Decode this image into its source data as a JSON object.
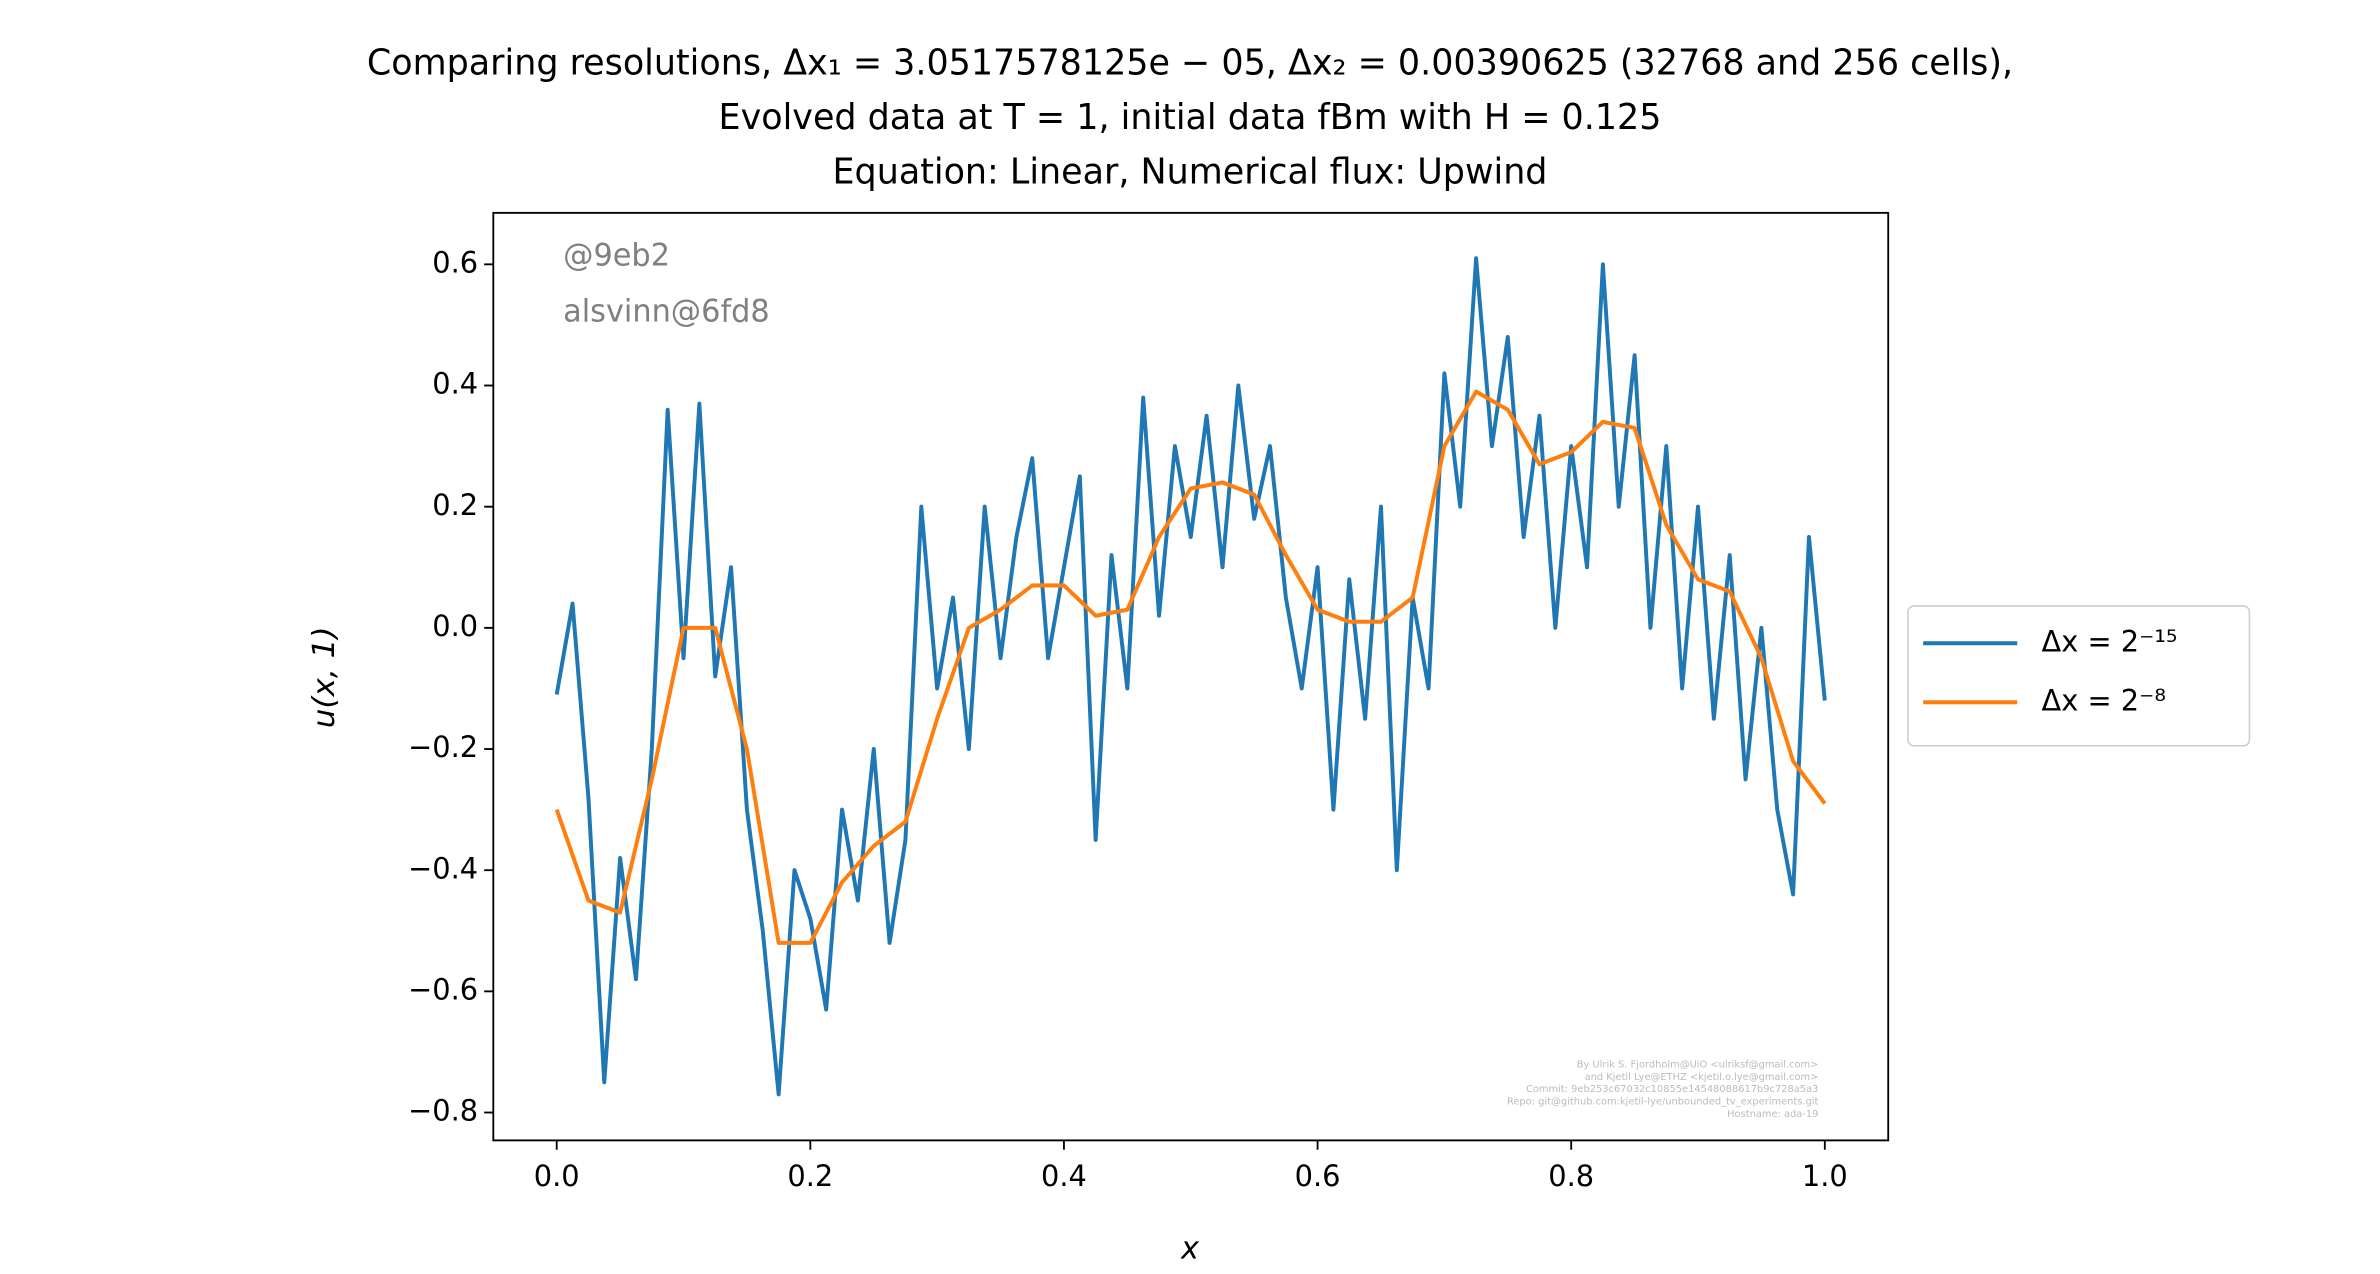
{
  "chart_data": {
    "type": "line",
    "title": [
      "Comparing resolutions, Δx₁ = 3.0517578125e − 05, Δx₂ = 0.00390625 (32768 and 256 cells),",
      "Evolved data at T = 1, initial data fBm with H = 0.125",
      "Equation: Linear, Numerical flux: Upwind"
    ],
    "x_label": "x",
    "y_label": "u(x, 1)",
    "watermark": [
      "@9eb2",
      "alsvinn@6fd8"
    ],
    "credits": [
      "By Ulrik S. Fjordholm@UiO <ulriksf@gmail.com>",
      "and Kjetil Lye@ETHZ <kjetil.o.lye@gmail.com>",
      "Commit: 9eb253c67032c10855e14548088617b9c728a5a3",
      "Repo: git@github.com:kjetil-lye/unbounded_tv_experiments.git",
      "Hostname: ada-19"
    ],
    "xlim": [
      -0.05,
      1.05
    ],
    "ylim": [
      -0.846,
      0.685
    ],
    "xticks": [
      {
        "value": 0,
        "label": "0.0"
      },
      {
        "value": 0.2,
        "label": "0.2"
      },
      {
        "value": 0.4,
        "label": "0.4"
      },
      {
        "value": 0.6,
        "label": "0.6"
      },
      {
        "value": 0.8,
        "label": "0.8"
      },
      {
        "value": 1,
        "label": "1.0"
      }
    ],
    "yticks": [
      {
        "value": -0.8,
        "label": "−0.8"
      },
      {
        "value": -0.6,
        "label": "−0.6"
      },
      {
        "value": -0.4,
        "label": "−0.4"
      },
      {
        "value": -0.2,
        "label": "−0.2"
      },
      {
        "value": 0,
        "label": "0.0"
      },
      {
        "value": 0.2,
        "label": "0.2"
      },
      {
        "value": 0.4,
        "label": "0.4"
      },
      {
        "value": 0.6,
        "label": "0.6"
      }
    ],
    "grid": false,
    "legend": "outside right",
    "series": [
      {
        "name": "Δx = 2⁻¹⁵",
        "color": "#1f77b4",
        "x": [
          0,
          0.0125,
          0.025,
          0.0375,
          0.05,
          0.0625,
          0.075,
          0.0875,
          0.1,
          0.1125,
          0.125,
          0.1375,
          0.15,
          0.1625,
          0.175,
          0.1875,
          0.2,
          0.2125,
          0.225,
          0.2375,
          0.25,
          0.2625,
          0.275,
          0.2875,
          0.3,
          0.3125,
          0.325,
          0.3375,
          0.35,
          0.3625,
          0.375,
          0.3875,
          0.4,
          0.4125,
          0.425,
          0.4375,
          0.45,
          0.4625,
          0.475,
          0.4875,
          0.5,
          0.5125,
          0.525,
          0.5375,
          0.55,
          0.5625,
          0.575,
          0.5875,
          0.6,
          0.6125,
          0.625,
          0.6375,
          0.65,
          0.6625,
          0.675,
          0.6875,
          0.7,
          0.7125,
          0.725,
          0.7375,
          0.75,
          0.7625,
          0.775,
          0.7875,
          0.8,
          0.8125,
          0.825,
          0.8375,
          0.85,
          0.8625,
          0.875,
          0.8875,
          0.9,
          0.9125,
          0.925,
          0.9375,
          0.95,
          0.9625,
          0.975,
          0.9875,
          1.0
        ],
        "values": [
          -0.11,
          0.04,
          -0.28,
          -0.75,
          -0.38,
          -0.58,
          -0.2,
          0.36,
          -0.05,
          0.37,
          -0.08,
          0.1,
          -0.3,
          -0.5,
          -0.77,
          -0.4,
          -0.48,
          -0.63,
          -0.3,
          -0.45,
          -0.2,
          -0.52,
          -0.35,
          0.2,
          -0.1,
          0.05,
          -0.2,
          0.2,
          -0.05,
          0.15,
          0.28,
          -0.05,
          0.1,
          0.25,
          -0.35,
          0.12,
          -0.1,
          0.38,
          0.02,
          0.3,
          0.15,
          0.35,
          0.1,
          0.4,
          0.18,
          0.3,
          0.05,
          -0.1,
          0.1,
          -0.3,
          0.08,
          -0.15,
          0.2,
          -0.4,
          0.05,
          -0.1,
          0.42,
          0.2,
          0.61,
          0.3,
          0.48,
          0.15,
          0.35,
          0.0,
          0.3,
          0.1,
          0.6,
          0.2,
          0.45,
          0.0,
          0.3,
          -0.1,
          0.2,
          -0.15,
          0.12,
          -0.25,
          0.0,
          -0.3,
          -0.44,
          0.15,
          -0.12
        ]
      },
      {
        "name": "Δx = 2⁻⁸",
        "color": "#ff7f0e",
        "x": [
          0,
          0.025,
          0.05,
          0.075,
          0.1,
          0.125,
          0.15,
          0.175,
          0.2,
          0.225,
          0.25,
          0.275,
          0.3,
          0.325,
          0.35,
          0.375,
          0.4,
          0.425,
          0.45,
          0.475,
          0.5,
          0.525,
          0.55,
          0.575,
          0.6,
          0.625,
          0.65,
          0.675,
          0.7,
          0.725,
          0.75,
          0.775,
          0.8,
          0.825,
          0.85,
          0.875,
          0.9,
          0.925,
          0.95,
          0.975,
          1.0
        ],
        "values": [
          -0.3,
          -0.45,
          -0.47,
          -0.25,
          0.0,
          0.0,
          -0.2,
          -0.52,
          -0.52,
          -0.42,
          -0.36,
          -0.32,
          -0.15,
          0.0,
          0.03,
          0.07,
          0.07,
          0.02,
          0.03,
          0.15,
          0.23,
          0.24,
          0.22,
          0.12,
          0.03,
          0.01,
          0.01,
          0.05,
          0.3,
          0.39,
          0.36,
          0.27,
          0.29,
          0.34,
          0.33,
          0.17,
          0.08,
          0.06,
          -0.05,
          -0.22,
          -0.29
        ]
      }
    ]
  }
}
